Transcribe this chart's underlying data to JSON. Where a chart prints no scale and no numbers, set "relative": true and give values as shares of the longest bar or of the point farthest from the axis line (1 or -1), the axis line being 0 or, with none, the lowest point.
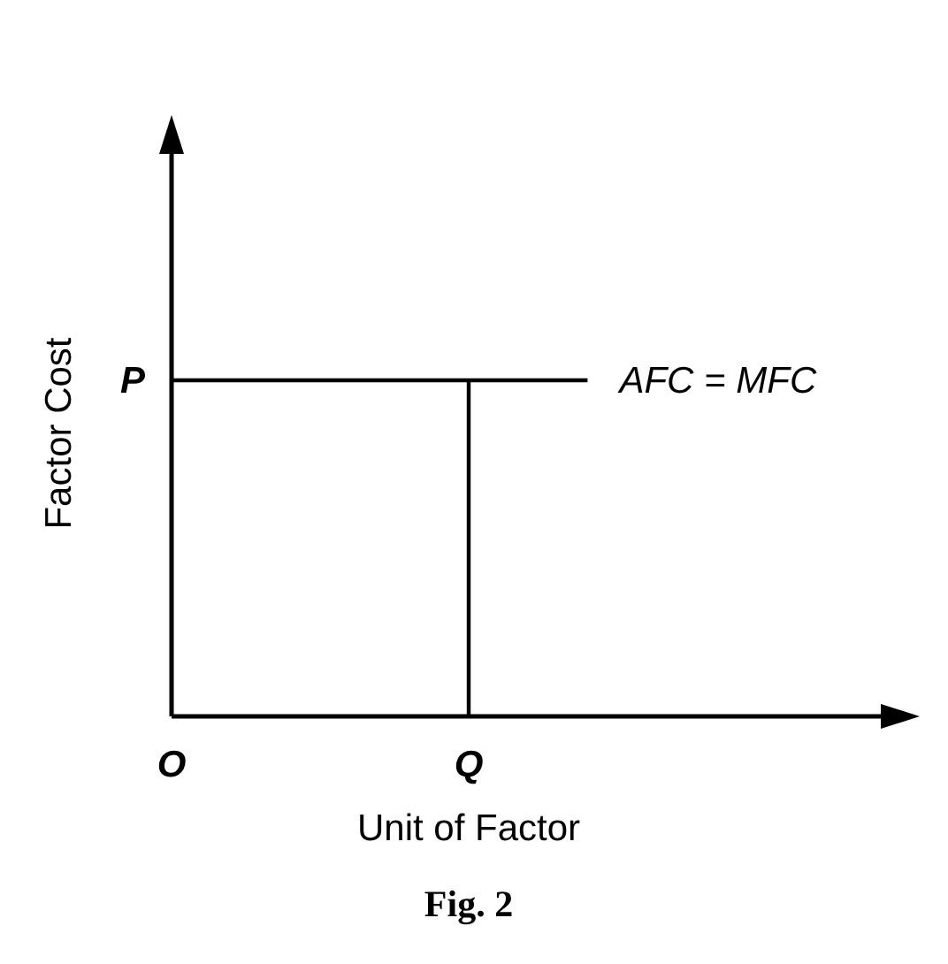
{
  "chart_data": {
    "type": "line",
    "relative": true,
    "xlabel": "Unit of Factor",
    "ylabel": "Factor Cost",
    "categories": [
      "O",
      null,
      null,
      null,
      null,
      "Q",
      null,
      null
    ],
    "series": [
      {
        "name": "AFC = MFC",
        "color": "#000000",
        "values": [
          1,
          1,
          1,
          1,
          1,
          1,
          1,
          1
        ]
      },
      {
        "color": "#000000",
        "x": [
          "Q",
          "Q"
        ],
        "values": [
          0,
          1
        ]
      }
    ],
    "annotations": [
      "P",
      "Fig. 2"
    ]
  }
}
